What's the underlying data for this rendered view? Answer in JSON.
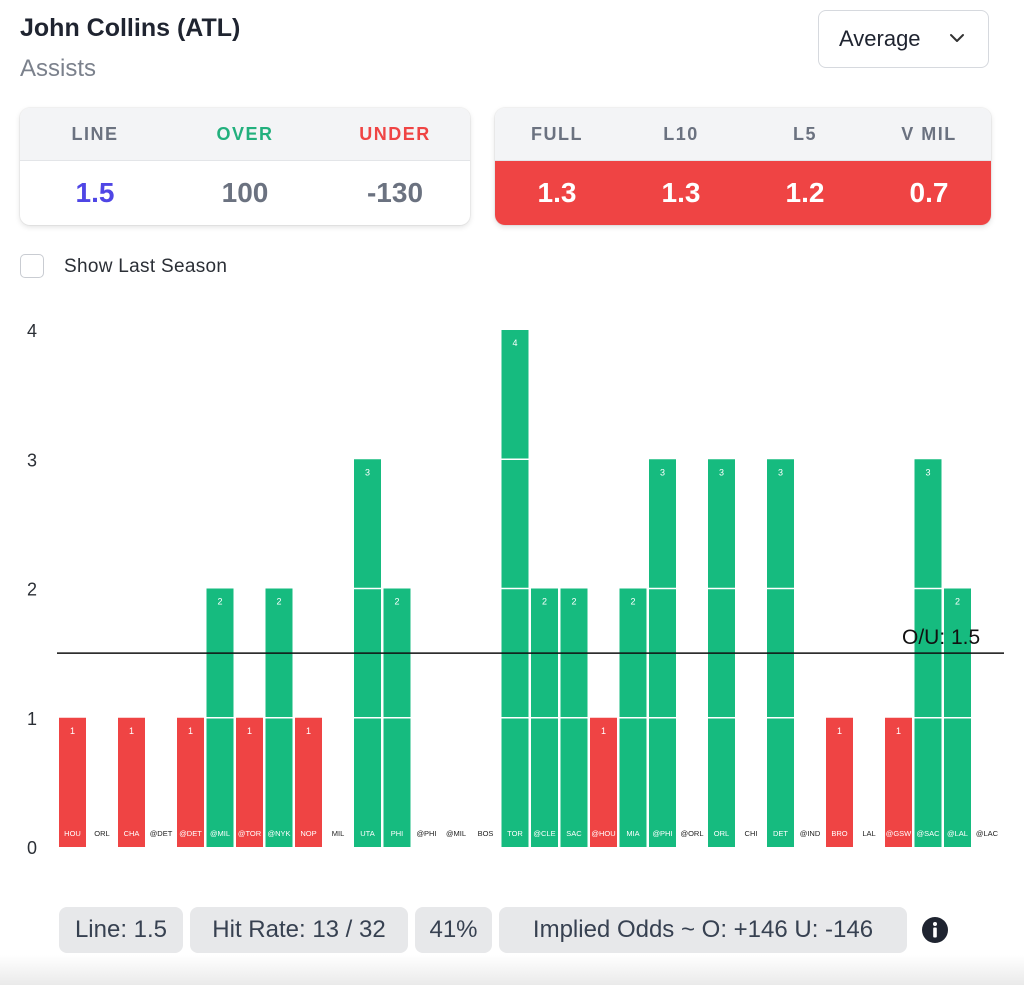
{
  "header": {
    "title": "John Collins (ATL)",
    "subtitle": "Assists",
    "dropdown_value": "Average"
  },
  "line_card": {
    "labels": [
      "LINE",
      "OVER",
      "UNDER"
    ],
    "values": [
      "1.5",
      "100",
      "-130"
    ],
    "colors": {
      "line_value": "#4f46e5",
      "over_label": "#22b07d",
      "under_label": "#ef4444"
    }
  },
  "avg_card": {
    "labels": [
      "FULL",
      "L10",
      "L5",
      "V MIL"
    ],
    "values": [
      "1.3",
      "1.3",
      "1.2",
      "0.7"
    ],
    "background": "#ef4444"
  },
  "show_last_season": {
    "label": "Show Last Season",
    "checked": false
  },
  "chart_data": {
    "type": "bar",
    "categories": [
      "HOU",
      "ORL",
      "CHA",
      "@DET",
      "@DET",
      "@MIL",
      "@TOR",
      "@NYK",
      "NOP",
      "MIL",
      "UTA",
      "PHI",
      "@PHI",
      "@MIL",
      "BOS",
      "TOR",
      "@CLE",
      "SAC",
      "@HOU",
      "MIA",
      "@PHI",
      "@ORL",
      "ORL",
      "CHI",
      "DET",
      "@IND",
      "BRO",
      "LAL",
      "@GSW",
      "@SAC",
      "@LAL",
      "@LAC"
    ],
    "values": [
      1,
      0,
      1,
      0,
      1,
      2,
      1,
      2,
      1,
      0,
      3,
      2,
      0,
      0,
      0,
      4,
      2,
      2,
      1,
      2,
      3,
      0,
      3,
      0,
      3,
      0,
      1,
      0,
      1,
      3,
      2,
      0
    ],
    "y_ticks": [
      "0",
      "1",
      "2",
      "3",
      "4"
    ],
    "ylim": [
      0,
      4
    ],
    "line_value": 1.5,
    "line_label": "O/U: 1.5",
    "colors": {
      "over": "#16bb7f",
      "under": "#ef4444"
    }
  },
  "footer": {
    "line": "Line: 1.5",
    "hit_rate": "Hit Rate: 13 / 32",
    "percent": "41%",
    "implied_odds": "Implied Odds ~ O: +146 U: -146"
  }
}
